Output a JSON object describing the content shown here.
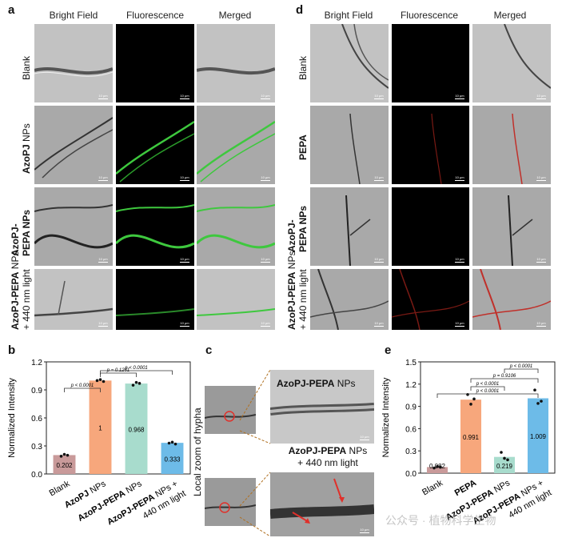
{
  "panels": {
    "a": "a",
    "b": "b",
    "c": "c",
    "d": "d",
    "e": "e"
  },
  "columns": {
    "bright": "Bright Field",
    "fluor": "Fluorescence",
    "merged": "Merged"
  },
  "scale_label": "10 μm",
  "scale_label_small": "1 μm",
  "rows_a": [
    {
      "bold": "",
      "normal": "Blank",
      "line2": ""
    },
    {
      "bold": "AzoPJ",
      "normal": " NPs",
      "line2": ""
    },
    {
      "bold": "AzoPJ-",
      "normal": "",
      "line2": "PEPA NPs"
    },
    {
      "bold": "AzoPJ-PEPA",
      "normal": " NPs",
      "line2": "+ 440 nm light"
    }
  ],
  "rows_d": [
    {
      "bold": "",
      "normal": "Blank",
      "line2": ""
    },
    {
      "bold": "PEPA",
      "normal": "",
      "line2": ""
    },
    {
      "bold": "AzoPJ-",
      "normal": "",
      "line2": "PEPA NPs"
    },
    {
      "bold": "AzoPJ-PEPA",
      "normal": " NPs",
      "line2": "+ 440 nm light"
    }
  ],
  "panel_c": {
    "side_label": "Local zoom of hypha",
    "top_title_bold": "AzoPJ-PEPA",
    "top_title_normal": " NPs",
    "bottom_title_bold": "AzoPJ-PEPA",
    "bottom_title_normal": " NPs",
    "bottom_title_line2": "+ 440 nm light"
  },
  "watermark": "公众号 · 植物科学生物",
  "colors": {
    "blank": "#c99a9a",
    "azopj": "#f7a77c",
    "azopj_pepa": "#a8dccd",
    "light": "#6dbbe8",
    "pepa": "#f7a77c",
    "green": "#3ec83e",
    "red": "#c0302a"
  },
  "chart_data": [
    {
      "type": "bar",
      "ylabel": "Normalized Intensity",
      "ylim": [
        0,
        1.2
      ],
      "yticks": [
        "0.0",
        "0.3",
        "0.6",
        "0.9",
        "1.2"
      ],
      "categories": [
        {
          "bold": "",
          "normal": "Blank",
          "line2": ""
        },
        {
          "bold": "AzoPJ",
          "normal": " NPs",
          "line2": ""
        },
        {
          "bold": "AzoPJ-PEPA",
          "normal": " NPs",
          "line2": ""
        },
        {
          "bold": "AzoPJ-PEPA",
          "normal": " NPs +",
          "line2": "440 nm light"
        }
      ],
      "values": [
        0.202,
        1,
        0.968,
        0.333
      ],
      "value_labels": [
        "0.202",
        "1",
        "0.968",
        "0.333"
      ],
      "colors": [
        "#c99a9a",
        "#f7a77c",
        "#a8dccd",
        "#6dbbe8"
      ],
      "points": [
        [
          0.19,
          0.21,
          0.2
        ],
        [
          1.0,
          1.01,
          0.99
        ],
        [
          0.95,
          0.98,
          0.97
        ],
        [
          0.33,
          0.34,
          0.32
        ]
      ],
      "comparisons": [
        {
          "from": 0,
          "to": 1,
          "label": "p < 0.0001"
        },
        {
          "from": 1,
          "to": 2,
          "label": "p = 0.1251"
        },
        {
          "from": 1,
          "to": 3,
          "label": "p < 0.0001"
        }
      ]
    },
    {
      "type": "bar",
      "ylabel": "Normalized Intensity",
      "ylim": [
        0,
        1.5
      ],
      "yticks": [
        "0.0",
        "0.3",
        "0.6",
        "0.9",
        "1.2",
        "1.5"
      ],
      "categories": [
        {
          "bold": "",
          "normal": "Blank",
          "line2": ""
        },
        {
          "bold": "PEPA",
          "normal": "",
          "line2": ""
        },
        {
          "bold": "AzoPJ-PEPA",
          "normal": " NPs",
          "line2": ""
        },
        {
          "bold": "AzoPJ-PEPA",
          "normal": " NPs +",
          "line2": "440 nm light"
        }
      ],
      "values": [
        0.082,
        0.991,
        0.219,
        1.009
      ],
      "value_labels": [
        "0.082",
        "0.991",
        "0.219",
        "1.009"
      ],
      "colors": [
        "#c99a9a",
        "#f7a77c",
        "#a8dccd",
        "#6dbbe8"
      ],
      "points": [
        [
          0.07,
          0.09,
          0.08
        ],
        [
          1.06,
          0.93,
          1.0
        ],
        [
          0.28,
          0.2,
          0.18
        ],
        [
          1.12,
          0.94,
          0.97
        ]
      ],
      "comparisons": [
        {
          "from": 0,
          "to": 3,
          "label": "p < 0.0001"
        },
        {
          "from": 1,
          "to": 2,
          "label": "p < 0.0001"
        },
        {
          "from": 1,
          "to": 3,
          "label": "p = 0.9106"
        },
        {
          "from": 2,
          "to": 3,
          "label": "p < 0.0001"
        }
      ]
    }
  ]
}
